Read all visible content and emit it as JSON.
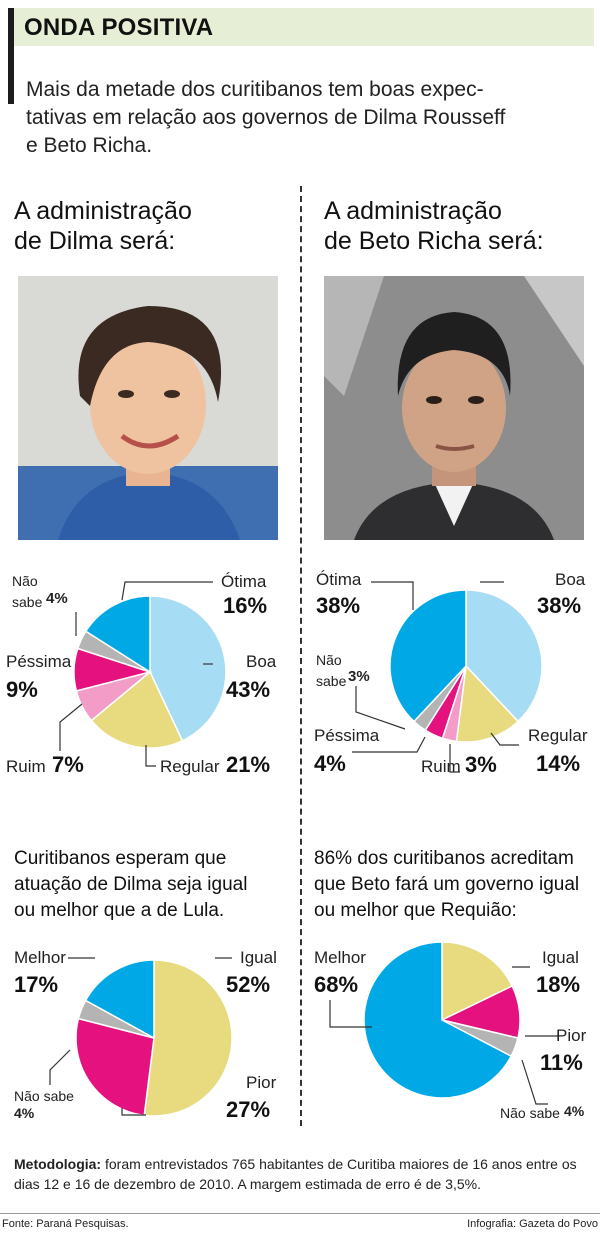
{
  "header": {
    "title": "ONDA POSITIVA",
    "subtitle": "Mais da metade dos curitibanos tem boas expec-\ntativas em relação aos governos de Dilma Rousseff\ne Beto Richa."
  },
  "left": {
    "title": "A administração\nde Dilma será:",
    "question": "Curitibanos esperam que\natuação de Dilma seja igual\nou melhor que a de Lula."
  },
  "right": {
    "title": "A administração\nde Beto Richa será:",
    "question": "86% dos curitibanos acreditam\nque Beto fará um governo igual\nou melhor que Requião:"
  },
  "colors": {
    "blue": "#00a8e6",
    "light_blue": "#a7dcf5",
    "yellow": "#e8da7e",
    "pink": "#f29cc7",
    "magenta": "#e5117e",
    "gray": "#b4b4b4",
    "header_bg": "#e6efd6"
  },
  "chart_data": [
    {
      "type": "pie",
      "id": "dilma",
      "slices": [
        {
          "label": "Boa",
          "value": 43,
          "display": "43%",
          "color": "#a7dcf5"
        },
        {
          "label": "Regular",
          "value": 21,
          "display": "21%",
          "color": "#e8da7e"
        },
        {
          "label": "Ruim",
          "value": 7,
          "display": "7%",
          "color": "#f29cc7"
        },
        {
          "label": "Péssima",
          "value": 9,
          "display": "9%",
          "color": "#e5117e"
        },
        {
          "label": "Não\nsabe",
          "value": 4,
          "display": "4%",
          "color": "#b4b4b4"
        },
        {
          "label": "Ótima",
          "value": 16,
          "display": "16%",
          "color": "#00a8e6"
        }
      ]
    },
    {
      "type": "pie",
      "id": "beto",
      "slices": [
        {
          "label": "Boa",
          "value": 38,
          "display": "38%",
          "color": "#a7dcf5"
        },
        {
          "label": "Regular",
          "value": 14,
          "display": "14%",
          "color": "#e8da7e"
        },
        {
          "label": "Ruim",
          "value": 3,
          "display": "3%",
          "color": "#f29cc7"
        },
        {
          "label": "Péssima",
          "value": 4,
          "display": "4%",
          "color": "#e5117e"
        },
        {
          "label": "Não\nsabe",
          "value": 3,
          "display": "3%",
          "color": "#b4b4b4"
        },
        {
          "label": "Ótima",
          "value": 38,
          "display": "38%",
          "color": "#00a8e6"
        }
      ]
    },
    {
      "type": "pie",
      "id": "dilma_lula",
      "slices": [
        {
          "label": "Igual",
          "value": 52,
          "display": "52%",
          "color": "#e8da7e"
        },
        {
          "label": "Pior",
          "value": 27,
          "display": "27%",
          "color": "#e5117e"
        },
        {
          "label": "Não sabe",
          "value": 4,
          "display": "4%",
          "color": "#b4b4b4"
        },
        {
          "label": "Melhor",
          "value": 17,
          "display": "17%",
          "color": "#00a8e6"
        }
      ]
    },
    {
      "type": "pie",
      "id": "beto_requiao",
      "slices": [
        {
          "label": "Igual",
          "value": 18,
          "display": "18%",
          "color": "#e8da7e"
        },
        {
          "label": "Pior",
          "value": 11,
          "display": "11%",
          "color": "#e5117e"
        },
        {
          "label": "Não sabe",
          "value": 4,
          "display": "4%",
          "color": "#b4b4b4"
        },
        {
          "label": "Melhor",
          "value": 68,
          "display": "68%",
          "color": "#00a8e6"
        }
      ]
    }
  ],
  "methodology": {
    "label": "Metodologia:",
    "text": " foram entrevistados 765 habitantes de Curitiba maiores de 16 anos entre os dias 12 e 16 de dezembro de 2010. A margem estimada de erro é de 3,5%."
  },
  "footer": {
    "source": "Fonte: Paraná Pesquisas.",
    "credit": "Infografia: Gazeta do Povo"
  }
}
